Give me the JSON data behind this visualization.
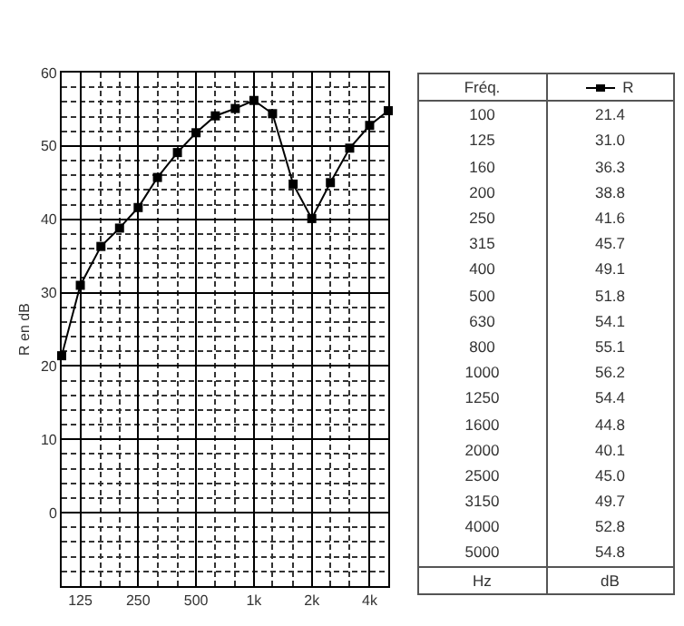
{
  "chart_data": [
    {
      "type": "line",
      "ylabel": "R en dB",
      "log": "x",
      "x": [
        100,
        125,
        160,
        200,
        250,
        315,
        400,
        500,
        630,
        800,
        1000,
        1250,
        1600,
        2000,
        2500,
        3150,
        4000,
        5000
      ],
      "series": [
        {
          "color": "#000000",
          "values": [
            21.4,
            31.0,
            36.3,
            38.8,
            41.6,
            45.7,
            49.1,
            51.8,
            54.1,
            55.1,
            56.2,
            54.4,
            44.8,
            40.1,
            45.0,
            49.7,
            52.8,
            54.8
          ]
        }
      ],
      "xlim": [
        100,
        5000
      ],
      "xticks": [
        {
          "value": 100,
          "label": null
        },
        {
          "value": 125,
          "label": "125"
        },
        {
          "value": 160,
          "label": null
        },
        {
          "value": 200,
          "label": null
        },
        {
          "value": 250,
          "label": "250"
        },
        {
          "value": 315,
          "label": null
        },
        {
          "value": 400,
          "label": null
        },
        {
          "value": 500,
          "label": "500"
        },
        {
          "value": 630,
          "label": null
        },
        {
          "value": 800,
          "label": null
        },
        {
          "value": 1000,
          "label": "1k"
        },
        {
          "value": 1250,
          "label": null
        },
        {
          "value": 1600,
          "label": null
        },
        {
          "value": 2000,
          "label": "2k"
        },
        {
          "value": 2500,
          "label": null
        },
        {
          "value": 3150,
          "label": null
        },
        {
          "value": 4000,
          "label": "4k"
        },
        {
          "value": 5000,
          "label": null
        }
      ],
      "ylim": [
        -10,
        60
      ],
      "yticks": [
        {
          "value": -8,
          "label": null
        },
        {
          "value": -6,
          "label": null
        },
        {
          "value": -4,
          "label": null
        },
        {
          "value": -2,
          "label": null
        },
        0,
        {
          "value": 2,
          "label": null
        },
        {
          "value": 4,
          "label": null
        },
        {
          "value": 6,
          "label": null
        },
        {
          "value": 8,
          "label": null
        },
        10,
        {
          "value": 12,
          "label": null
        },
        {
          "value": 14,
          "label": null
        },
        {
          "value": 16,
          "label": null
        },
        {
          "value": 18,
          "label": null
        },
        20,
        {
          "value": 22,
          "label": null
        },
        {
          "value": 24,
          "label": null
        },
        {
          "value": 26,
          "label": null
        },
        {
          "value": 28,
          "label": null
        },
        30,
        {
          "value": 32,
          "label": null
        },
        {
          "value": 34,
          "label": null
        },
        {
          "value": 36,
          "label": null
        },
        {
          "value": 38,
          "label": null
        },
        40,
        {
          "value": 42,
          "label": null
        },
        {
          "value": 44,
          "label": null
        },
        {
          "value": 46,
          "label": null
        },
        {
          "value": 48,
          "label": null
        },
        50,
        {
          "value": 52,
          "label": null
        },
        {
          "value": 54,
          "label": null
        },
        {
          "value": 56,
          "label": null
        },
        {
          "value": 58,
          "label": null
        },
        60
      ],
      "grid": true,
      "marker": "square",
      "line_style": "solid"
    },
    {
      "type": "other",
      "categories": [
        "100",
        "125",
        "160",
        "200",
        "250",
        "315",
        "400",
        "500",
        "630",
        "800",
        "1000",
        "1250",
        "1600",
        "2000",
        "2500",
        "3150",
        "4000",
        "5000"
      ],
      "series": [
        {
          "name": "R",
          "color": "#000000",
          "values": [
            21.4,
            31.0,
            36.3,
            38.8,
            41.6,
            45.7,
            49.1,
            51.8,
            54.1,
            55.1,
            56.2,
            54.4,
            44.8,
            40.1,
            45.0,
            49.7,
            52.8,
            54.8
          ],
          "value_labels": [
            "21.4",
            "31.0",
            "36.3",
            "38.8",
            "41.6",
            "45.7",
            "49.1",
            "51.8",
            "54.1",
            "55.1",
            "56.2",
            "54.4",
            "44.8",
            "40.1",
            "45.0",
            "49.7",
            "52.8",
            "54.8"
          ]
        }
      ],
      "legend": "top",
      "annotations": [
        "Fréq.",
        "Hz",
        "dB"
      ]
    }
  ]
}
